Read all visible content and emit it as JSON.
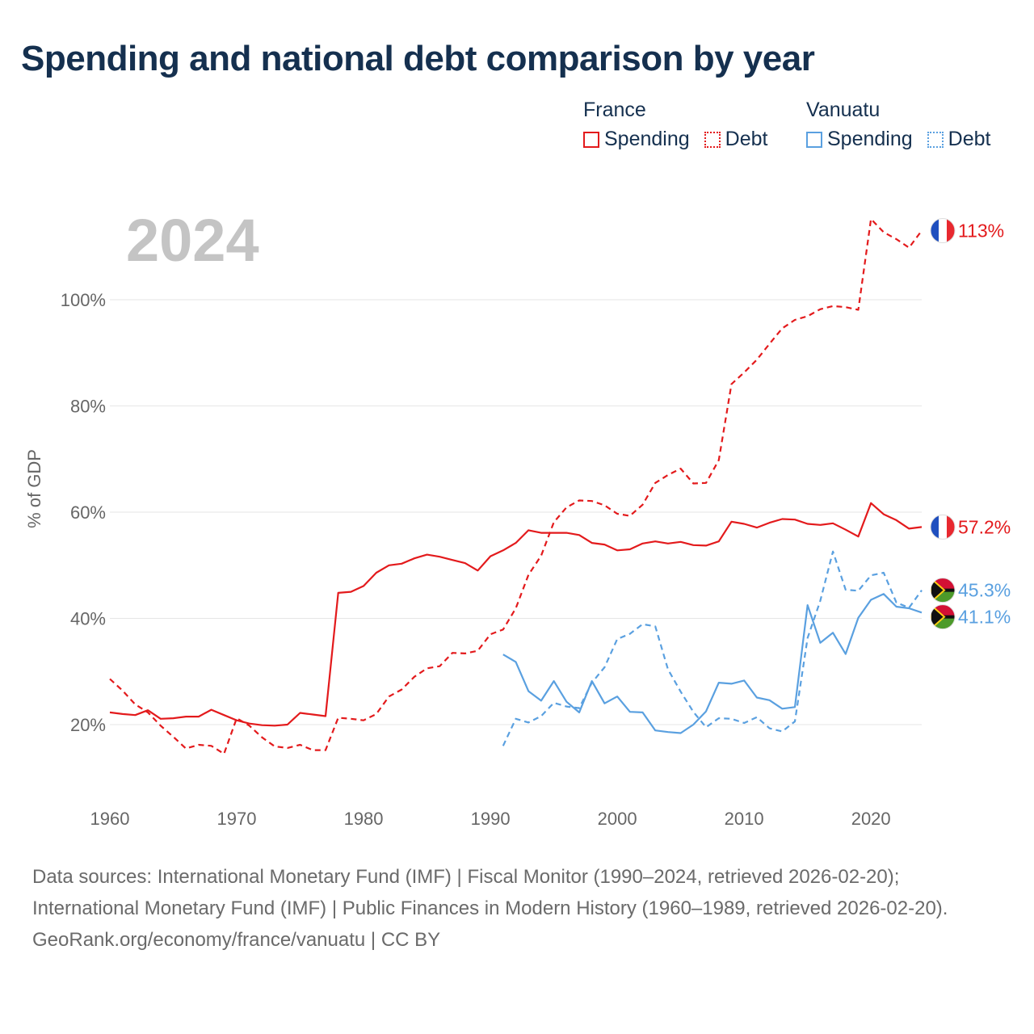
{
  "title": "Spending and national debt comparison by year",
  "year_watermark": "2024",
  "legend": {
    "groups": [
      {
        "name": "France",
        "items": [
          {
            "label": "Spending",
            "color": "#e31a1c",
            "style": "solid"
          },
          {
            "label": "Debt",
            "color": "#e31a1c",
            "style": "dotted"
          }
        ]
      },
      {
        "name": "Vanuatu",
        "items": [
          {
            "label": "Spending",
            "color": "#5aa0e0",
            "style": "solid"
          },
          {
            "label": "Debt",
            "color": "#5aa0e0",
            "style": "dotted"
          }
        ]
      }
    ]
  },
  "chart_data": {
    "type": "line",
    "ylabel": "% of GDP",
    "xlabel": "",
    "xlim": [
      1960,
      2024
    ],
    "ylim": [
      10,
      115
    ],
    "yticks": [
      20,
      40,
      60,
      80,
      100
    ],
    "ytick_labels": [
      "20%",
      "40%",
      "60%",
      "80%",
      "100%"
    ],
    "xticks": [
      1960,
      1970,
      1980,
      1990,
      2000,
      2010,
      2020
    ],
    "xtick_labels": [
      "1960",
      "1970",
      "1980",
      "1990",
      "2000",
      "2010",
      "2020"
    ],
    "grid": true,
    "series": [
      {
        "name": "France Spending",
        "country": "France",
        "color": "#e31a1c",
        "dash": "solid",
        "end_label": "57.2%",
        "x": [
          1960,
          1961,
          1962,
          1963,
          1964,
          1965,
          1966,
          1967,
          1968,
          1969,
          1970,
          1971,
          1972,
          1973,
          1974,
          1975,
          1976,
          1977,
          1978,
          1979,
          1980,
          1981,
          1982,
          1983,
          1984,
          1985,
          1986,
          1987,
          1988,
          1989,
          1990,
          1991,
          1992,
          1993,
          1994,
          1995,
          1996,
          1997,
          1998,
          1999,
          2000,
          2001,
          2002,
          2003,
          2004,
          2005,
          2006,
          2007,
          2008,
          2009,
          2010,
          2011,
          2012,
          2013,
          2014,
          2015,
          2016,
          2017,
          2018,
          2019,
          2020,
          2021,
          2022,
          2023,
          2024
        ],
        "values": [
          22.3,
          22.0,
          21.8,
          22.7,
          21.1,
          21.2,
          21.5,
          21.5,
          22.8,
          21.8,
          20.8,
          20.2,
          19.9,
          19.8,
          20.0,
          22.2,
          21.9,
          21.6,
          44.8,
          45.0,
          46.1,
          48.6,
          50.0,
          50.3,
          51.3,
          52.0,
          51.6,
          51.0,
          50.4,
          49.0,
          51.7,
          52.8,
          54.2,
          56.6,
          56.1,
          56.1,
          56.1,
          55.7,
          54.2,
          53.9,
          52.8,
          53.0,
          54.1,
          54.5,
          54.1,
          54.4,
          53.8,
          53.7,
          54.5,
          58.2,
          57.8,
          57.1,
          58.0,
          58.7,
          58.6,
          57.8,
          57.6,
          57.9,
          56.7,
          55.4,
          61.7,
          59.6,
          58.5,
          56.9,
          57.2
        ]
      },
      {
        "name": "France Debt",
        "country": "France",
        "color": "#e31a1c",
        "dash": "dashed",
        "end_label": "113%",
        "x": [
          1960,
          1961,
          1962,
          1963,
          1964,
          1965,
          1966,
          1967,
          1968,
          1969,
          1970,
          1971,
          1972,
          1973,
          1974,
          1975,
          1976,
          1977,
          1978,
          1979,
          1980,
          1981,
          1982,
          1983,
          1984,
          1985,
          1986,
          1987,
          1988,
          1989,
          1990,
          1991,
          1992,
          1993,
          1994,
          1995,
          1996,
          1997,
          1998,
          1999,
          2000,
          2001,
          2002,
          2003,
          2004,
          2005,
          2006,
          2007,
          2008,
          2009,
          2010,
          2011,
          2012,
          2013,
          2014,
          2015,
          2016,
          2017,
          2018,
          2019,
          2020,
          2021,
          2022,
          2023,
          2024
        ],
        "values": [
          28.6,
          26.4,
          23.8,
          22.3,
          19.8,
          17.7,
          15.5,
          16.2,
          16.0,
          14.5,
          21.2,
          19.8,
          17.6,
          15.9,
          15.6,
          16.2,
          15.2,
          15.2,
          21.3,
          21.1,
          20.8,
          22.0,
          25.3,
          26.6,
          29.0,
          30.6,
          31.0,
          33.5,
          33.4,
          33.9,
          37.0,
          37.9,
          41.9,
          48.2,
          51.8,
          58.1,
          60.9,
          62.2,
          62.1,
          61.3,
          59.7,
          59.3,
          61.4,
          65.5,
          67.0,
          68.2,
          65.4,
          65.5,
          69.8,
          84.1,
          86.3,
          88.7,
          91.7,
          94.6,
          96.2,
          96.9,
          98.2,
          98.8,
          98.6,
          98.1,
          115.2,
          112.7,
          111.4,
          109.8,
          113.0
        ]
      },
      {
        "name": "Vanuatu Spending",
        "country": "Vanuatu",
        "color": "#5aa0e0",
        "dash": "solid",
        "end_label": "41.1%",
        "x": [
          1991,
          1992,
          1993,
          1994,
          1995,
          1996,
          1997,
          1998,
          1999,
          2000,
          2001,
          2002,
          2003,
          2004,
          2005,
          2006,
          2007,
          2008,
          2009,
          2010,
          2011,
          2012,
          2013,
          2014,
          2015,
          2016,
          2017,
          2018,
          2019,
          2020,
          2021,
          2022,
          2023,
          2024
        ],
        "values": [
          33.2,
          31.8,
          26.3,
          24.5,
          28.2,
          24.3,
          22.3,
          28.2,
          24.0,
          25.3,
          22.4,
          22.3,
          18.9,
          18.6,
          18.4,
          20.0,
          22.5,
          27.9,
          27.7,
          28.3,
          25.1,
          24.6,
          23.0,
          23.3,
          42.5,
          35.4,
          37.3,
          33.3,
          40.1,
          43.5,
          44.6,
          42.2,
          41.9,
          41.1
        ]
      },
      {
        "name": "Vanuatu Debt",
        "country": "Vanuatu",
        "color": "#5aa0e0",
        "dash": "dashed",
        "end_label": "45.3%",
        "x": [
          1991,
          1992,
          1993,
          1994,
          1995,
          1996,
          1997,
          1998,
          1999,
          2000,
          2001,
          2002,
          2003,
          2004,
          2005,
          2006,
          2007,
          2008,
          2009,
          2010,
          2011,
          2012,
          2013,
          2014,
          2015,
          2016,
          2017,
          2018,
          2019,
          2020,
          2021,
          2022,
          2023,
          2024
        ],
        "values": [
          16.0,
          21.1,
          20.4,
          21.6,
          24.1,
          23.4,
          23.1,
          27.9,
          30.8,
          36.1,
          37.1,
          38.9,
          38.5,
          30.4,
          26.2,
          22.4,
          19.5,
          21.2,
          21.1,
          20.3,
          21.4,
          19.3,
          18.7,
          20.6,
          36.3,
          43.3,
          52.6,
          45.4,
          45.2,
          48.1,
          48.6,
          43.0,
          42.0,
          45.3
        ]
      }
    ]
  },
  "footer": {
    "sources": "Data sources: International Monetary Fund (IMF) | Fiscal Monitor (1990–2024, retrieved 2026-02-20); International Monetary Fund (IMF) | Public Finances in Modern History (1960–1989, retrieved 2026-02-20).",
    "attribution": "GeoRank.org/economy/france/vanuatu | CC BY"
  }
}
